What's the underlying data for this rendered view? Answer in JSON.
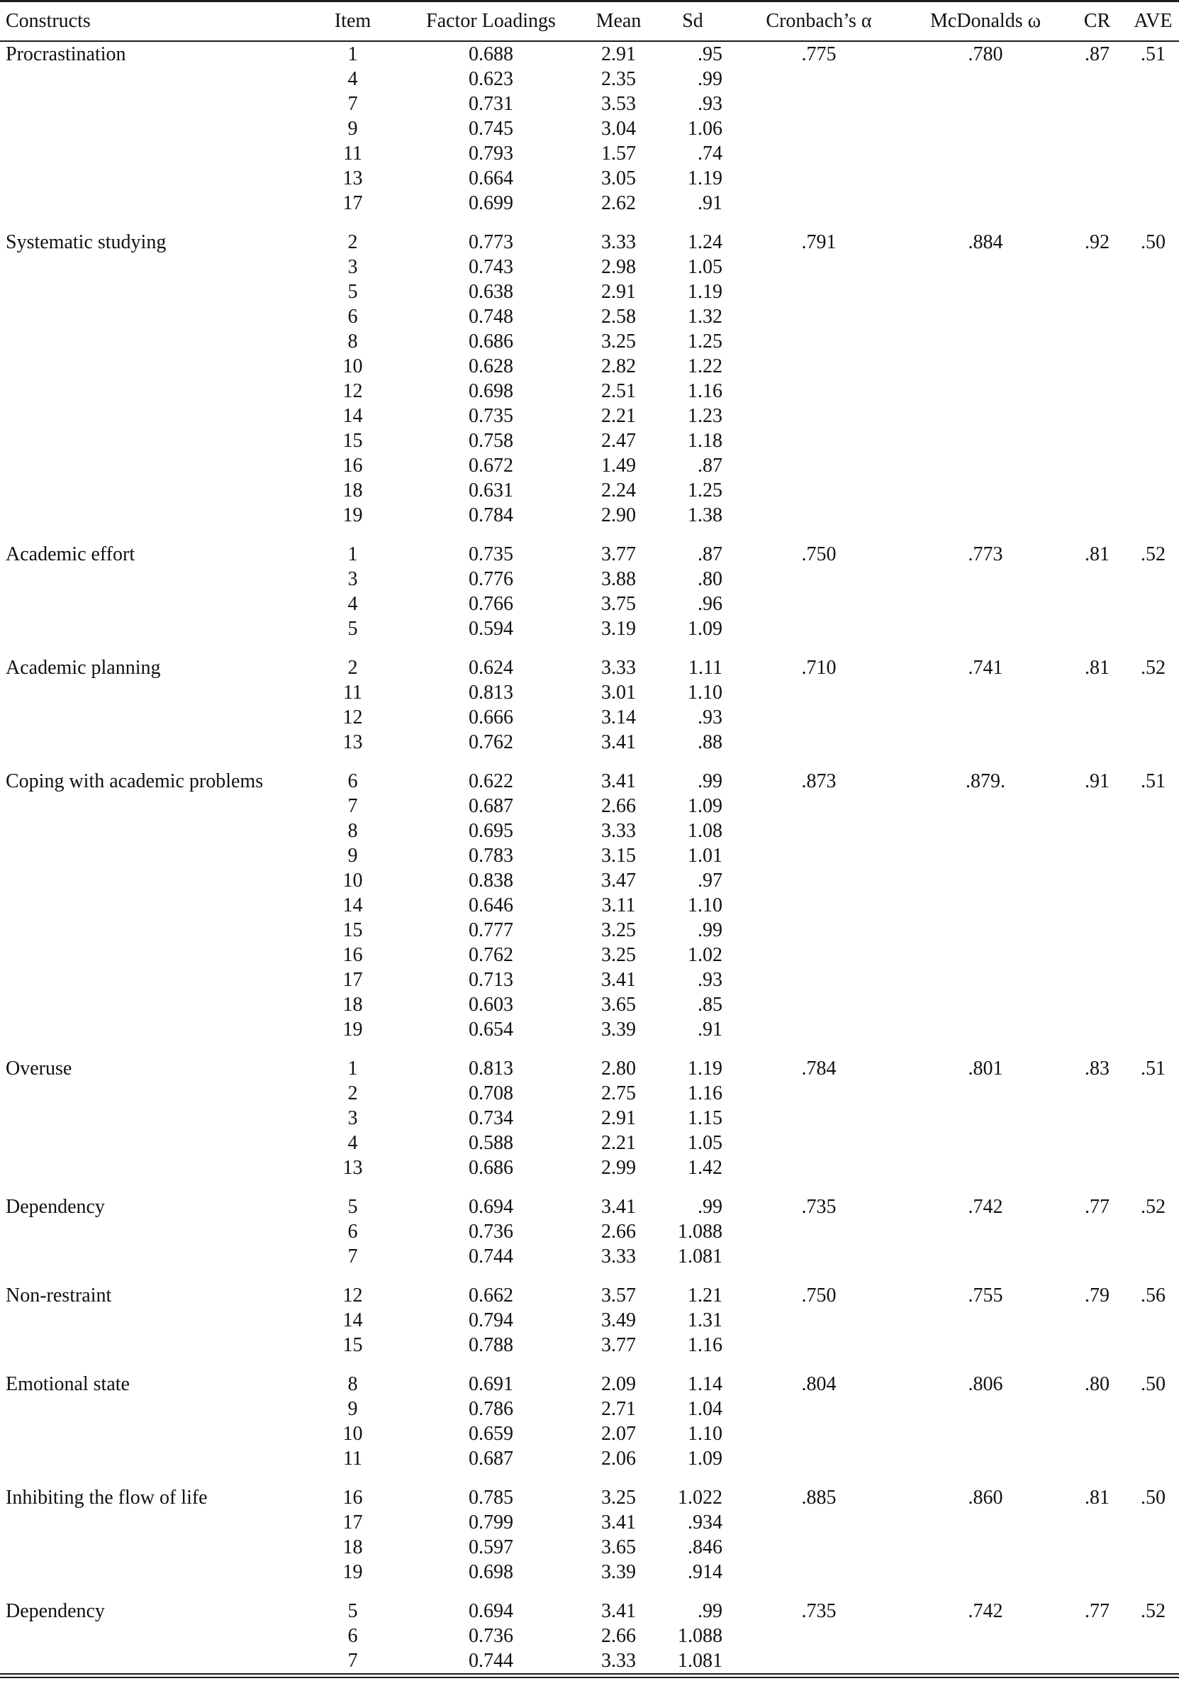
{
  "colors": {
    "background": "#ffffff",
    "text": "#111111",
    "rule": "#1c1c1c"
  },
  "table": {
    "columns": [
      {
        "id": "construct",
        "label": "Constructs"
      },
      {
        "id": "item",
        "label": "Item"
      },
      {
        "id": "loading",
        "label": "Factor Loadings"
      },
      {
        "id": "mean",
        "label": "Mean"
      },
      {
        "id": "sd",
        "label": "Sd"
      },
      {
        "id": "alpha",
        "label": "Cronbach’s α"
      },
      {
        "id": "omega",
        "label": "McDonalds ω"
      },
      {
        "id": "cr",
        "label": "CR"
      },
      {
        "id": "ave",
        "label": "AVE"
      }
    ],
    "groups": [
      {
        "construct": "Procrastination",
        "alpha": ".775",
        "omega": ".780",
        "cr": ".87",
        "ave": ".51",
        "items": [
          {
            "item": "1",
            "loading": "0.688",
            "mean": "2.91",
            "sd": ".95"
          },
          {
            "item": "4",
            "loading": "0.623",
            "mean": "2.35",
            "sd": ".99"
          },
          {
            "item": "7",
            "loading": "0.731",
            "mean": "3.53",
            "sd": ".93"
          },
          {
            "item": "9",
            "loading": "0.745",
            "mean": "3.04",
            "sd": "1.06"
          },
          {
            "item": "11",
            "loading": "0.793",
            "mean": "1.57",
            "sd": ".74"
          },
          {
            "item": "13",
            "loading": "0.664",
            "mean": "3.05",
            "sd": "1.19"
          },
          {
            "item": "17",
            "loading": "0.699",
            "mean": "2.62",
            "sd": ".91"
          }
        ]
      },
      {
        "construct": "Systematic studying",
        "alpha": ".791",
        "omega": ".884",
        "cr": ".92",
        "ave": ".50",
        "items": [
          {
            "item": "2",
            "loading": "0.773",
            "mean": "3.33",
            "sd": "1.24"
          },
          {
            "item": "3",
            "loading": "0.743",
            "mean": "2.98",
            "sd": "1.05"
          },
          {
            "item": "5",
            "loading": "0.638",
            "mean": "2.91",
            "sd": "1.19"
          },
          {
            "item": "6",
            "loading": "0.748",
            "mean": "2.58",
            "sd": "1.32"
          },
          {
            "item": "8",
            "loading": "0.686",
            "mean": "3.25",
            "sd": "1.25"
          },
          {
            "item": "10",
            "loading": "0.628",
            "mean": "2.82",
            "sd": "1.22"
          },
          {
            "item": "12",
            "loading": "0.698",
            "mean": "2.51",
            "sd": "1.16"
          },
          {
            "item": "14",
            "loading": "0.735",
            "mean": "2.21",
            "sd": "1.23"
          },
          {
            "item": "15",
            "loading": "0.758",
            "mean": "2.47",
            "sd": "1.18"
          },
          {
            "item": "16",
            "loading": "0.672",
            "mean": "1.49",
            "sd": ".87"
          },
          {
            "item": "18",
            "loading": "0.631",
            "mean": "2.24",
            "sd": "1.25"
          },
          {
            "item": "19",
            "loading": "0.784",
            "mean": "2.90",
            "sd": "1.38"
          }
        ]
      },
      {
        "construct": "Academic effort",
        "alpha": ".750",
        "omega": ".773",
        "cr": ".81",
        "ave": ".52",
        "items": [
          {
            "item": "1",
            "loading": "0.735",
            "mean": "3.77",
            "sd": ".87"
          },
          {
            "item": "3",
            "loading": "0.776",
            "mean": "3.88",
            "sd": ".80"
          },
          {
            "item": "4",
            "loading": "0.766",
            "mean": "3.75",
            "sd": ".96"
          },
          {
            "item": "5",
            "loading": "0.594",
            "mean": "3.19",
            "sd": "1.09"
          }
        ]
      },
      {
        "construct": "Academic planning",
        "alpha": ".710",
        "omega": ".741",
        "cr": ".81",
        "ave": ".52",
        "items": [
          {
            "item": "2",
            "loading": "0.624",
            "mean": "3.33",
            "sd": "1.11"
          },
          {
            "item": "11",
            "loading": "0.813",
            "mean": "3.01",
            "sd": "1.10"
          },
          {
            "item": "12",
            "loading": "0.666",
            "mean": "3.14",
            "sd": ".93"
          },
          {
            "item": "13",
            "loading": "0.762",
            "mean": "3.41",
            "sd": ".88"
          }
        ]
      },
      {
        "construct": "Coping with academic problems",
        "alpha": ".873",
        "omega": ".879.",
        "cr": ".91",
        "ave": ".51",
        "items": [
          {
            "item": "6",
            "loading": "0.622",
            "mean": "3.41",
            "sd": ".99"
          },
          {
            "item": "7",
            "loading": "0.687",
            "mean": "2.66",
            "sd": "1.09"
          },
          {
            "item": "8",
            "loading": "0.695",
            "mean": "3.33",
            "sd": "1.08"
          },
          {
            "item": "9",
            "loading": "0.783",
            "mean": "3.15",
            "sd": "1.01"
          },
          {
            "item": "10",
            "loading": "0.838",
            "mean": "3.47",
            "sd": ".97"
          },
          {
            "item": "14",
            "loading": "0.646",
            "mean": "3.11",
            "sd": "1.10"
          },
          {
            "item": "15",
            "loading": "0.777",
            "mean": "3.25",
            "sd": ".99"
          },
          {
            "item": "16",
            "loading": "0.762",
            "mean": "3.25",
            "sd": "1.02"
          },
          {
            "item": "17",
            "loading": "0.713",
            "mean": "3.41",
            "sd": ".93"
          },
          {
            "item": "18",
            "loading": "0.603",
            "mean": "3.65",
            "sd": ".85"
          },
          {
            "item": "19",
            "loading": "0.654",
            "mean": "3.39",
            "sd": ".91"
          }
        ]
      },
      {
        "construct": "Overuse",
        "alpha": ".784",
        "omega": ".801",
        "cr": ".83",
        "ave": ".51",
        "items": [
          {
            "item": "1",
            "loading": "0.813",
            "mean": "2.80",
            "sd": "1.19"
          },
          {
            "item": "2",
            "loading": "0.708",
            "mean": "2.75",
            "sd": "1.16"
          },
          {
            "item": "3",
            "loading": "0.734",
            "mean": "2.91",
            "sd": "1.15"
          },
          {
            "item": "4",
            "loading": "0.588",
            "mean": "2.21",
            "sd": "1.05"
          },
          {
            "item": "13",
            "loading": "0.686",
            "mean": "2.99",
            "sd": "1.42"
          }
        ]
      },
      {
        "construct": "Dependency",
        "alpha": ".735",
        "omega": ".742",
        "cr": ".77",
        "ave": ".52",
        "items": [
          {
            "item": "5",
            "loading": "0.694",
            "mean": "3.41",
            "sd": ".99"
          },
          {
            "item": "6",
            "loading": "0.736",
            "mean": "2.66",
            "sd": "1.088"
          },
          {
            "item": "7",
            "loading": "0.744",
            "mean": "3.33",
            "sd": "1.081"
          }
        ]
      },
      {
        "construct": "Non-restraint",
        "alpha": ".750",
        "omega": ".755",
        "cr": ".79",
        "ave": ".56",
        "items": [
          {
            "item": "12",
            "loading": "0.662",
            "mean": "3.57",
            "sd": "1.21"
          },
          {
            "item": "14",
            "loading": "0.794",
            "mean": "3.49",
            "sd": "1.31"
          },
          {
            "item": "15",
            "loading": "0.788",
            "mean": "3.77",
            "sd": "1.16"
          }
        ]
      },
      {
        "construct": "Emotional state",
        "alpha": ".804",
        "omega": ".806",
        "cr": ".80",
        "ave": ".50",
        "items": [
          {
            "item": "8",
            "loading": "0.691",
            "mean": "2.09",
            "sd": "1.14"
          },
          {
            "item": "9",
            "loading": "0.786",
            "mean": "2.71",
            "sd": "1.04"
          },
          {
            "item": "10",
            "loading": "0.659",
            "mean": "2.07",
            "sd": "1.10"
          },
          {
            "item": "11",
            "loading": "0.687",
            "mean": "2.06",
            "sd": "1.09"
          }
        ]
      },
      {
        "construct": "Inhibiting the flow of life",
        "alpha": ".885",
        "omega": ".860",
        "cr": ".81",
        "ave": ".50",
        "items": [
          {
            "item": "16",
            "loading": "0.785",
            "mean": "3.25",
            "sd": "1.022"
          },
          {
            "item": "17",
            "loading": "0.799",
            "mean": "3.41",
            "sd": ".934"
          },
          {
            "item": "18",
            "loading": "0.597",
            "mean": "3.65",
            "sd": ".846"
          },
          {
            "item": "19",
            "loading": "0.698",
            "mean": "3.39",
            "sd": ".914"
          }
        ]
      },
      {
        "construct": "Dependency",
        "alpha": ".735",
        "omega": ".742",
        "cr": ".77",
        "ave": ".52",
        "items": [
          {
            "item": "5",
            "loading": "0.694",
            "mean": "3.41",
            "sd": ".99"
          },
          {
            "item": "6",
            "loading": "0.736",
            "mean": "2.66",
            "sd": "1.088"
          },
          {
            "item": "7",
            "loading": "0.744",
            "mean": "3.33",
            "sd": "1.081"
          }
        ]
      }
    ]
  }
}
